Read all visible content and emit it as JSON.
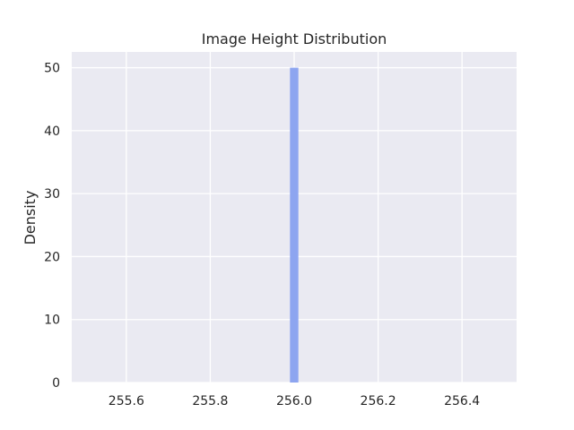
{
  "chart_data": {
    "type": "bar",
    "title": "Image Height Distribution",
    "xlabel": "",
    "ylabel": "Density",
    "xlim": [
      255.47,
      256.53
    ],
    "ylim": [
      0,
      52.5
    ],
    "xticks": [
      "255.6",
      "255.8",
      "256.0",
      "256.2",
      "256.4"
    ],
    "xtick_values": [
      255.6,
      255.8,
      256.0,
      256.2,
      256.4
    ],
    "yticks": [
      "0",
      "10",
      "20",
      "30",
      "40",
      "50"
    ],
    "ytick_values": [
      0,
      10,
      20,
      30,
      40,
      50
    ],
    "grid": true,
    "bars": [
      {
        "x_start": 255.99,
        "x_end": 256.01,
        "value": 50
      }
    ],
    "colors": {
      "bar": "#8da5f0",
      "background": "#eaeaf2",
      "grid": "#ffffff"
    }
  }
}
